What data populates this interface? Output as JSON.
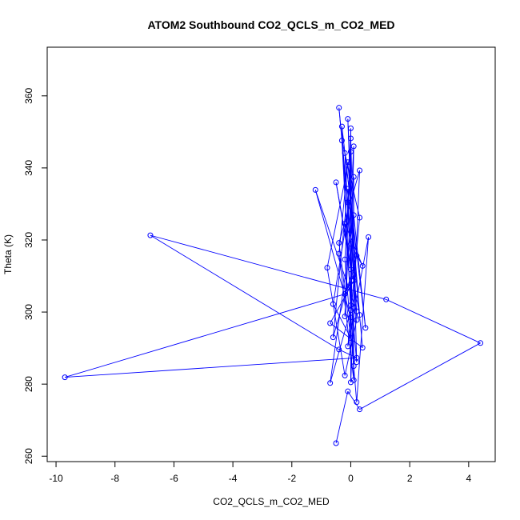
{
  "chart_data": {
    "type": "line",
    "title": "ATOM2 Southbound CO2_QCLS_m_CO2_MED",
    "xlabel": "CO2_QCLS_m_CO2_MED",
    "ylabel": "Theta (K)",
    "xlim": [
      -10.3,
      4.9
    ],
    "ylim": [
      258.5,
      373.5
    ],
    "x_ticks": [
      -10,
      -8,
      -6,
      -4,
      -2,
      0,
      2,
      4
    ],
    "y_ticks": [
      260,
      280,
      300,
      320,
      340,
      360
    ],
    "grid": false,
    "legend": "none",
    "color": "#0000ff",
    "markers": "open-circle",
    "series": [
      {
        "points": [
          [
            -0.5,
            263.6
          ],
          [
            -0.1,
            278.0
          ],
          [
            0.3,
            273.0
          ],
          [
            4.4,
            291.4
          ],
          [
            1.2,
            303.5
          ],
          [
            -6.8,
            321.3
          ],
          [
            -0.4,
            289.6
          ],
          [
            0.2,
            287.3
          ],
          [
            -9.7,
            281.9
          ],
          [
            -0.2,
            305.0
          ],
          [
            0.1,
            310.3
          ],
          [
            -0.4,
            356.7
          ],
          [
            -0.1,
            330.5
          ],
          [
            0.2,
            300.2
          ],
          [
            -1.2,
            333.9
          ],
          [
            0.0,
            298.5
          ],
          [
            0.1,
            346.0
          ],
          [
            -0.2,
            298.8
          ],
          [
            0.0,
            351.0
          ],
          [
            0.0,
            280.5
          ],
          [
            0.3,
            339.3
          ],
          [
            -0.4,
            319.2
          ],
          [
            0.0,
            292.8
          ],
          [
            -0.6,
            302.2
          ],
          [
            0.1,
            337.5
          ],
          [
            0.1,
            285.0
          ],
          [
            -0.3,
            347.6
          ],
          [
            0.3,
            326.2
          ],
          [
            -0.1,
            290.5
          ],
          [
            0.6,
            320.8
          ],
          [
            0.2,
            275.0
          ],
          [
            -0.2,
            314.6
          ],
          [
            0.0,
            344.5
          ],
          [
            -0.8,
            312.3
          ],
          [
            -0.2,
            282.4
          ],
          [
            0.2,
            297.8
          ],
          [
            -0.1,
            353.6
          ],
          [
            0.1,
            308.7
          ],
          [
            -0.7,
            296.9
          ],
          [
            0.4,
            290.1
          ],
          [
            -0.1,
            334.2
          ],
          [
            -0.6,
            293.0
          ],
          [
            0.2,
            315.6
          ],
          [
            -0.3,
            351.5
          ],
          [
            0.0,
            300.5
          ],
          [
            -0.7,
            280.3
          ],
          [
            0.1,
            326.9
          ],
          [
            0.5,
            295.6
          ],
          [
            -0.2,
            344.1
          ],
          [
            0.0,
            311.8
          ],
          [
            -0.5,
            336.0
          ],
          [
            0.3,
            299.2
          ],
          [
            -0.1,
            341.6
          ],
          [
            -0.4,
            316.2
          ],
          [
            0.1,
            281.1
          ],
          [
            0.0,
            318.9
          ],
          [
            0.4,
            312.8
          ],
          [
            -0.2,
            324.5
          ],
          [
            0.2,
            286.1
          ],
          [
            0.0,
            348.2
          ],
          [
            0.0,
            301.9
          ]
        ]
      }
    ]
  }
}
